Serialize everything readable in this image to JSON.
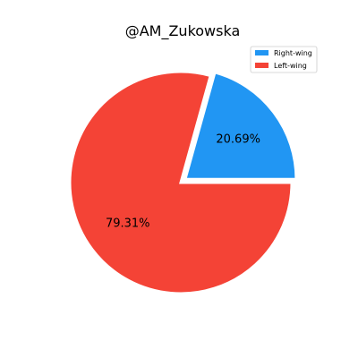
{
  "chart_data": {
    "type": "pie",
    "title": "@AM_Zukowska",
    "slices": [
      {
        "label": "Right-wing",
        "value": 20.69,
        "display": "20.69%",
        "color": "#2196F3",
        "exploded": true
      },
      {
        "label": "Left-wing",
        "value": 79.31,
        "display": "79.31%",
        "color": "#F44336",
        "exploded": false
      }
    ],
    "legend": {
      "placement": "top-right",
      "entries": [
        "Right-wing",
        "Left-wing"
      ]
    }
  }
}
